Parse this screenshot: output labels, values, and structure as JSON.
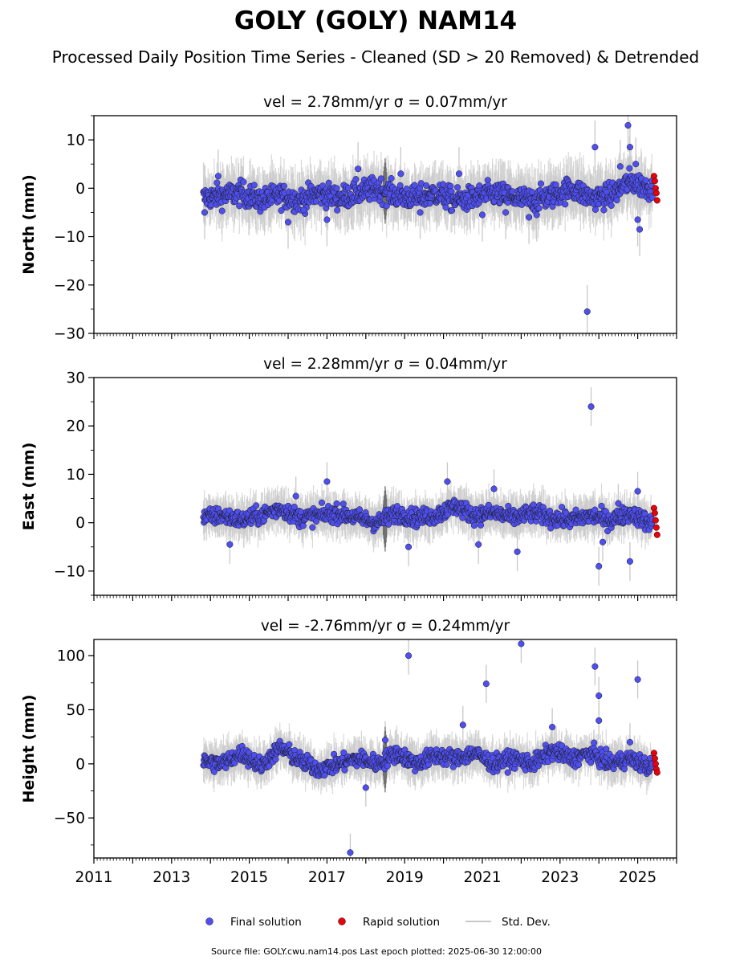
{
  "title": "GOLY (GOLY) NAM14",
  "subtitle": "Processed Daily Position Time Series - Cleaned (SD > 20 Removed) & Detrended",
  "footer": "Source file: GOLY.cwu.nam14.pos  Last epoch plotted: 2025-06-30 12:00:00",
  "legend": {
    "final_label": "Final solution",
    "rapid_label": "Rapid solution",
    "std_label": "Std. Dev."
  },
  "colors": {
    "final": "#4f4ff0",
    "rapid": "#e8000b",
    "std": "#c8c8c8"
  },
  "chart_data": [
    {
      "type": "scatter",
      "title": "vel = 2.78mm/yr   σ = 0.07mm/yr",
      "ylabel": "North (mm)",
      "xlim": [
        2011,
        2026
      ],
      "ylim": [
        -30,
        15
      ],
      "yticks": [
        10,
        0,
        -10,
        -20,
        -30
      ],
      "ytick_labels": [
        "10",
        "0",
        "−10",
        "−20",
        "−30"
      ],
      "xticks": [
        2011,
        2013,
        2015,
        2017,
        2019,
        2021,
        2023,
        2025
      ],
      "xtick_labels": [],
      "series": [
        {
          "name": "Final solution",
          "trend_x": [
            2013.8,
            2014.3,
            2014.8,
            2015.3,
            2015.8,
            2016.3,
            2016.8,
            2017.3,
            2017.8,
            2018.3,
            2018.8,
            2019.3,
            2019.8,
            2020.3,
            2020.8,
            2021.3,
            2021.8,
            2022.3,
            2022.8,
            2023.3,
            2023.8,
            2024.3,
            2024.8,
            2025.3
          ],
          "trend_y": [
            -2,
            -1.5,
            -1,
            -2.5,
            -1.5,
            -2.5,
            -1,
            -2,
            -1,
            0,
            -1.5,
            -2,
            -1,
            -2.5,
            -2,
            -1,
            -2,
            -2.5,
            -1.5,
            0,
            -2,
            -1.5,
            1.5,
            0
          ],
          "noise": 2.2,
          "outliers": [
            [
              2013.85,
              -5
            ],
            [
              2014.2,
              2.5
            ],
            [
              2016.0,
              -7
            ],
            [
              2016.4,
              -4.5
            ],
            [
              2017.0,
              -6.5
            ],
            [
              2017.8,
              4
            ],
            [
              2018.9,
              3
            ],
            [
              2019.4,
              -5
            ],
            [
              2020.4,
              3
            ],
            [
              2021.0,
              -5.5
            ],
            [
              2021.6,
              -5
            ],
            [
              2022.2,
              -6
            ],
            [
              2022.4,
              -5.5
            ],
            [
              2023.7,
              -25.5
            ],
            [
              2023.9,
              8.5
            ],
            [
              2024.55,
              4.5
            ],
            [
              2024.75,
              13
            ],
            [
              2024.8,
              8.5
            ],
            [
              2024.95,
              5
            ],
            [
              2025.0,
              -6.5
            ],
            [
              2025.05,
              -8.5
            ]
          ]
        },
        {
          "name": "Rapid solution",
          "x": [
            2025.42,
            2025.44,
            2025.46,
            2025.48,
            2025.5
          ],
          "y": [
            2.5,
            1.5,
            0,
            -1,
            -2.5
          ]
        }
      ]
    },
    {
      "type": "scatter",
      "title": "vel = 2.28mm/yr   σ = 0.04mm/yr",
      "ylabel": "East (mm)",
      "xlim": [
        2011,
        2026
      ],
      "ylim": [
        -15,
        30
      ],
      "yticks": [
        30,
        20,
        10,
        0,
        -10
      ],
      "ytick_labels": [
        "30",
        "20",
        "10",
        "0",
        "−10"
      ],
      "xticks": [
        2011,
        2013,
        2015,
        2017,
        2019,
        2021,
        2023,
        2025
      ],
      "xtick_labels": [],
      "series": [
        {
          "name": "Final solution",
          "trend_x": [
            2013.8,
            2014.3,
            2014.8,
            2015.3,
            2015.8,
            2016.3,
            2016.8,
            2017.3,
            2017.8,
            2018.3,
            2018.8,
            2019.3,
            2019.8,
            2020.3,
            2020.8,
            2021.3,
            2021.8,
            2022.3,
            2022.8,
            2023.3,
            2023.8,
            2024.3,
            2024.8,
            2025.3
          ],
          "trend_y": [
            1,
            1.5,
            0.5,
            1.5,
            3,
            1,
            1.5,
            2,
            1,
            0,
            2,
            1,
            1.5,
            3.5,
            1.5,
            2,
            1,
            2,
            1,
            0.5,
            1.5,
            0.5,
            2,
            0
          ],
          "noise": 1.6,
          "outliers": [
            [
              2014.5,
              -4.5
            ],
            [
              2016.2,
              5.5
            ],
            [
              2017.0,
              8.5
            ],
            [
              2019.1,
              -5
            ],
            [
              2020.1,
              8.5
            ],
            [
              2020.9,
              -4.5
            ],
            [
              2021.3,
              7
            ],
            [
              2021.9,
              -6
            ],
            [
              2023.8,
              24
            ],
            [
              2024.0,
              -9
            ],
            [
              2024.1,
              -4
            ],
            [
              2024.8,
              -8
            ],
            [
              2025.0,
              6.5
            ],
            [
              2024.5,
              4
            ]
          ]
        },
        {
          "name": "Rapid solution",
          "x": [
            2025.42,
            2025.44,
            2025.46,
            2025.48,
            2025.5
          ],
          "y": [
            3,
            2,
            0.5,
            -1,
            -2.5
          ]
        }
      ]
    },
    {
      "type": "scatter",
      "title": "vel = -2.76mm/yr   σ = 0.24mm/yr",
      "ylabel": "Height (mm)",
      "xlim": [
        2011,
        2026
      ],
      "ylim": [
        -87,
        115
      ],
      "yticks": [
        100,
        50,
        0,
        -50
      ],
      "ytick_labels": [
        "100",
        "50",
        "0",
        "−50"
      ],
      "xticks": [
        2011,
        2013,
        2015,
        2017,
        2019,
        2021,
        2023,
        2025
      ],
      "xtick_labels": [
        "2011",
        "2013",
        "2015",
        "2017",
        "2019",
        "2021",
        "2023",
        "2025"
      ],
      "series": [
        {
          "name": "Final solution",
          "trend_x": [
            2013.8,
            2014.3,
            2014.8,
            2015.3,
            2015.8,
            2016.3,
            2016.8,
            2017.3,
            2017.8,
            2018.3,
            2018.8,
            2019.3,
            2019.8,
            2020.3,
            2020.8,
            2021.3,
            2021.8,
            2022.3,
            2022.8,
            2023.3,
            2023.8,
            2024.3,
            2024.8,
            2025.3
          ],
          "trend_y": [
            2,
            0,
            10,
            -2,
            15,
            3,
            -5,
            0,
            5,
            0,
            10,
            0,
            8,
            5,
            10,
            0,
            5,
            0,
            12,
            5,
            10,
            0,
            5,
            -3
          ],
          "noise": 7,
          "outliers": [
            [
              2017.6,
              -82
            ],
            [
              2018.0,
              -22
            ],
            [
              2019.1,
              100
            ],
            [
              2021.1,
              74
            ],
            [
              2022.0,
              111
            ],
            [
              2023.9,
              90
            ],
            [
              2024.0,
              63
            ],
            [
              2024.0,
              40
            ],
            [
              2024.8,
              20
            ],
            [
              2025.0,
              78
            ],
            [
              2020.5,
              36
            ],
            [
              2022.8,
              34
            ],
            [
              2018.5,
              22
            ]
          ]
        },
        {
          "name": "Rapid solution",
          "x": [
            2025.42,
            2025.44,
            2025.46,
            2025.48,
            2025.5
          ],
          "y": [
            10,
            5,
            0,
            -5,
            -8
          ]
        }
      ]
    }
  ]
}
